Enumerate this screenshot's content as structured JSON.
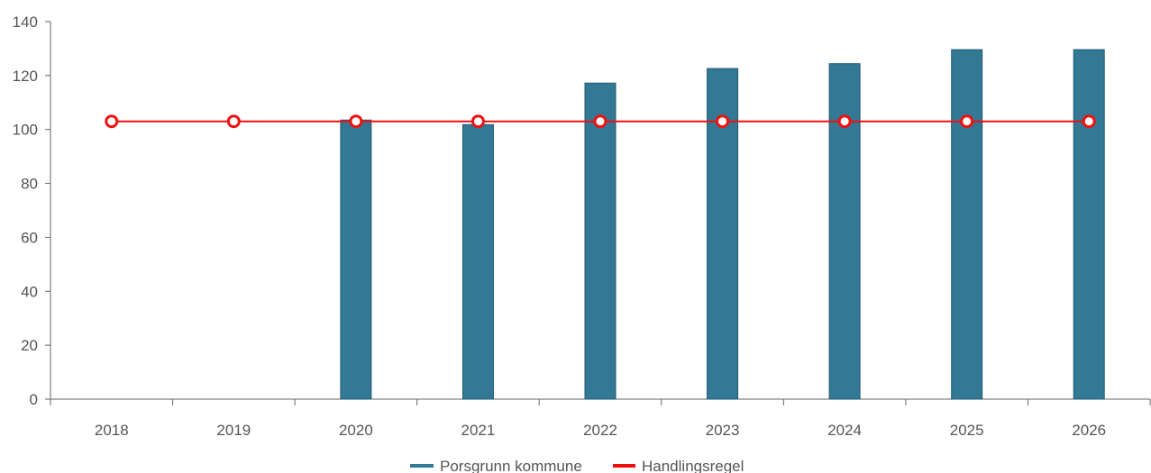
{
  "chart_data": {
    "type": "bar",
    "categories": [
      "2018",
      "2019",
      "2020",
      "2021",
      "2022",
      "2023",
      "2024",
      "2025",
      "2026"
    ],
    "series": [
      {
        "name": "Porsgrunn kommune",
        "kind": "bar",
        "color": "#337894",
        "values": [
          null,
          null,
          103.5,
          101.8,
          117.2,
          122.6,
          124.4,
          129.6,
          129.6
        ]
      },
      {
        "name": "Handlingsregel",
        "kind": "line",
        "color": "#ee1111",
        "values": [
          103,
          103,
          103,
          103,
          103,
          103,
          103,
          103,
          103
        ]
      }
    ],
    "yticks": [
      "0",
      "20",
      "40",
      "60",
      "80",
      "100",
      "120",
      "140"
    ],
    "ylim": [
      0,
      140
    ],
    "grid": false,
    "legend_position": "bottom"
  }
}
